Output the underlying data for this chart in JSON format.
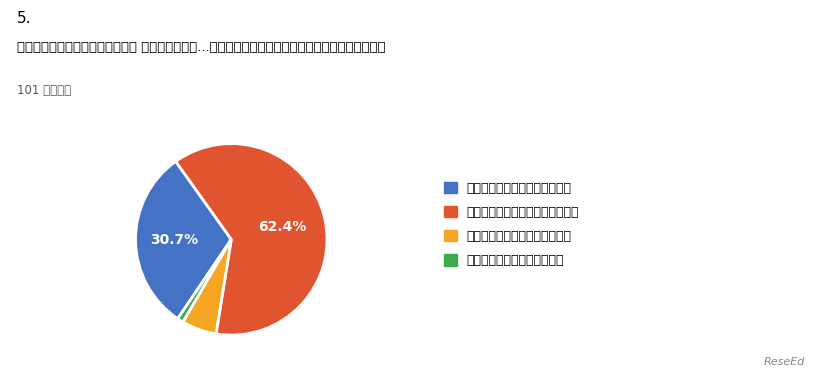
{
  "title_number": "5.",
  "title_main": "不登校児童生徒への対応について 現在の学校教育...への対応について課題があると感じていますか？",
  "subtitle": "101 件の回答",
  "slices": [
    30.7,
    62.4,
    5.9,
    1.0
  ],
  "colors": [
    "#4472C4",
    "#E05530",
    "#F5A623",
    "#3DAA4E"
  ],
  "labels": [
    "大きな課題があると感じている",
    "ある程度課題があると感じている",
    "あまり課題がないと感じている",
    "全く課題がないと感じている"
  ],
  "pct_labels": [
    "30.7%",
    "62.4%",
    "",
    ""
  ],
  "pct_label_r": [
    0.6,
    0.55,
    0,
    0
  ],
  "background_color": "#ffffff",
  "startangle": -124,
  "counterclock": false
}
